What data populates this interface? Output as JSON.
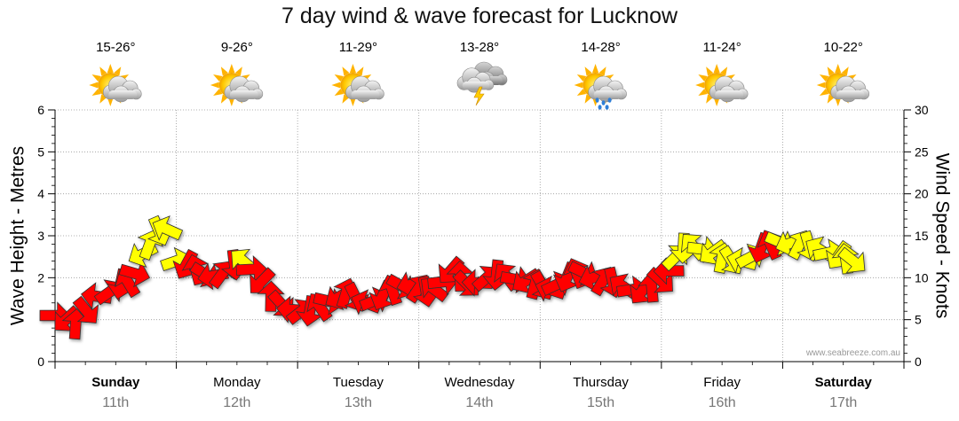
{
  "title": "7 day wind & wave forecast for Lucknow",
  "watermark": "www.seabreeze.com.au",
  "colors": {
    "strong_wind": "#ff0000",
    "light_wind": "#ffff00",
    "grid": "#999999"
  },
  "chart_data": {
    "type": "line",
    "title": "7 day wind & wave forecast for Lucknow",
    "ylabel_left": "Wave Height - Metres",
    "ylabel_right": "Wind Speed - Knots",
    "ylim_left": [
      0,
      6
    ],
    "ylim_right": [
      0,
      30
    ],
    "yticks_left": [
      "0",
      "",
      "2",
      "3",
      "4",
      "5",
      "6"
    ],
    "yticks_right": [
      "0",
      "5",
      "10",
      "15",
      "20",
      "25",
      "30"
    ],
    "grid": true,
    "days": [
      {
        "name": "Sunday",
        "date": "11th",
        "bold": true,
        "temp": "15-26°",
        "icon": "partly-cloudy-icon"
      },
      {
        "name": "Monday",
        "date": "12th",
        "bold": false,
        "temp": "9-26°",
        "icon": "partly-cloudy-icon"
      },
      {
        "name": "Tuesday",
        "date": "13th",
        "bold": false,
        "temp": "11-29°",
        "icon": "partly-cloudy-icon"
      },
      {
        "name": "Wednesday",
        "date": "14th",
        "bold": false,
        "temp": "13-28°",
        "icon": "thunderstorm-icon"
      },
      {
        "name": "Thursday",
        "date": "15th",
        "bold": false,
        "temp": "14-28°",
        "icon": "shower-icon"
      },
      {
        "name": "Friday",
        "date": "16th",
        "bold": false,
        "temp": "11-24°",
        "icon": "partly-cloudy-icon"
      },
      {
        "name": "Saturday",
        "date": "17th",
        "bold": true,
        "temp": "10-22°",
        "icon": "partly-cloudy-icon"
      }
    ],
    "series": [
      {
        "name": "Wind Speed (knots)",
        "axis": "right",
        "x_unit": "days since Sunday 00:00",
        "points": [
          [
            0.0,
            5.5
          ],
          [
            0.09,
            5.0
          ],
          [
            0.17,
            4.5
          ],
          [
            0.26,
            6.0
          ],
          [
            0.34,
            7.8
          ],
          [
            0.45,
            8.3
          ],
          [
            0.54,
            9.2
          ],
          [
            0.6,
            9.5
          ],
          [
            0.66,
            10.5
          ],
          [
            0.72,
            12.8
          ],
          [
            0.78,
            14.0
          ],
          [
            0.86,
            15.5
          ],
          [
            0.92,
            15.8
          ],
          [
            1.0,
            12.0
          ],
          [
            1.08,
            11.5
          ],
          [
            1.16,
            11.0
          ],
          [
            1.24,
            10.4
          ],
          [
            1.3,
            10.2
          ],
          [
            1.38,
            10.5
          ],
          [
            1.48,
            11.5
          ],
          [
            1.55,
            12.0
          ],
          [
            1.62,
            11.0
          ],
          [
            1.7,
            9.5
          ],
          [
            1.78,
            7.8
          ],
          [
            1.87,
            6.8
          ],
          [
            1.95,
            6.2
          ],
          [
            2.03,
            6.0
          ],
          [
            2.1,
            6.0
          ],
          [
            2.18,
            6.6
          ],
          [
            2.26,
            7.2
          ],
          [
            2.34,
            7.7
          ],
          [
            2.4,
            8.2
          ],
          [
            2.48,
            7.6
          ],
          [
            2.56,
            7.0
          ],
          [
            2.64,
            7.3
          ],
          [
            2.7,
            7.8
          ],
          [
            2.78,
            8.6
          ],
          [
            2.86,
            9.0
          ],
          [
            2.94,
            9.2
          ],
          [
            3.0,
            8.8
          ],
          [
            3.06,
            8.3
          ],
          [
            3.12,
            8.7
          ],
          [
            3.2,
            9.5
          ],
          [
            3.26,
            10.8
          ],
          [
            3.34,
            10.2
          ],
          [
            3.4,
            9.2
          ],
          [
            3.48,
            9.4
          ],
          [
            3.56,
            10.0
          ],
          [
            3.64,
            10.3
          ],
          [
            3.72,
            10.2
          ],
          [
            3.8,
            9.8
          ],
          [
            3.88,
            9.6
          ],
          [
            3.96,
            9.3
          ],
          [
            4.02,
            9.0
          ],
          [
            4.08,
            8.6
          ],
          [
            4.14,
            9.2
          ],
          [
            4.22,
            10.0
          ],
          [
            4.3,
            10.6
          ],
          [
            4.36,
            10.6
          ],
          [
            4.44,
            10.0
          ],
          [
            4.52,
            9.7
          ],
          [
            4.6,
            9.4
          ],
          [
            4.68,
            9.0
          ],
          [
            4.76,
            8.6
          ],
          [
            4.84,
            8.4
          ],
          [
            4.92,
            8.9
          ],
          [
            5.0,
            9.6
          ],
          [
            5.06,
            10.8
          ],
          [
            5.12,
            12.5
          ],
          [
            5.18,
            13.5
          ],
          [
            5.26,
            13.8
          ],
          [
            5.34,
            13.4
          ],
          [
            5.42,
            13.0
          ],
          [
            5.5,
            12.4
          ],
          [
            5.58,
            12.0
          ],
          [
            5.66,
            12.0
          ],
          [
            5.74,
            12.5
          ],
          [
            5.82,
            13.5
          ],
          [
            5.9,
            14.0
          ],
          [
            5.98,
            14.2
          ],
          [
            6.06,
            14.1
          ],
          [
            6.14,
            14.0
          ],
          [
            6.22,
            13.7
          ],
          [
            6.3,
            13.4
          ],
          [
            6.38,
            13.0
          ],
          [
            6.46,
            12.6
          ],
          [
            6.52,
            12.3
          ],
          [
            6.58,
            12.0
          ]
        ]
      }
    ]
  }
}
